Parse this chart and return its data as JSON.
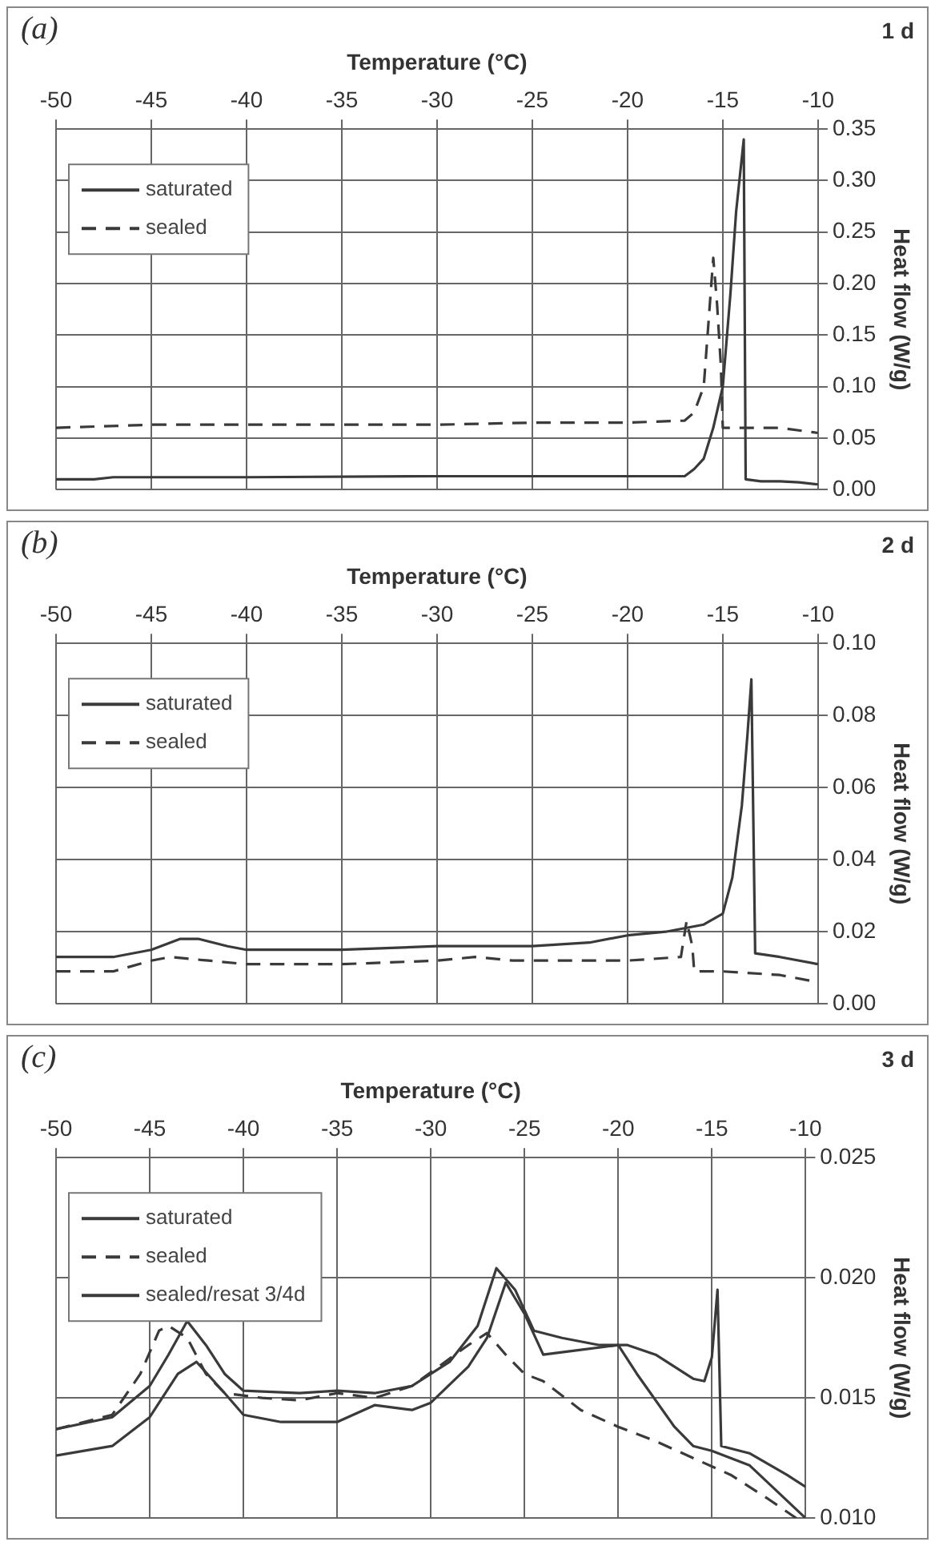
{
  "chart_data": [
    {
      "type": "line",
      "title": "(a)",
      "annotations": [
        "1 d"
      ],
      "xlabel": "Temperature (°C)",
      "ylabel": "Heat flow (W/g)",
      "xlim": [
        -50,
        -10
      ],
      "xticks": [
        -50,
        -45,
        -40,
        -35,
        -30,
        -25,
        -20,
        -15,
        -10
      ],
      "ylim": [
        0,
        0.35
      ],
      "yticks": [
        {
          "value": 0,
          "label": "0.00"
        },
        0.05,
        {
          "value": 0.1,
          "label": "0.10"
        },
        0.15,
        {
          "value": 0.2,
          "label": "0.20"
        },
        0.25,
        {
          "value": 0.3,
          "label": "0.30"
        },
        0.35
      ],
      "grid": true,
      "legend": "top left",
      "series": [
        {
          "name": "saturated",
          "color": "#3a3a3a",
          "line_style": "solid",
          "x": [
            -50,
            -48,
            -47,
            -40,
            -30,
            -20,
            -17,
            -16.5,
            -16,
            -15.5,
            -15,
            -14.6,
            -14.3,
            -13.9,
            -13.8,
            -13,
            -12,
            -11,
            -10
          ],
          "values": [
            0.01,
            0.01,
            0.012,
            0.012,
            0.013,
            0.013,
            0.013,
            0.02,
            0.03,
            0.06,
            0.1,
            0.19,
            0.27,
            0.34,
            0.01,
            0.008,
            0.008,
            0.007,
            0.005
          ]
        },
        {
          "name": "sealed",
          "color": "#3a3a3a",
          "line_style": "dashed",
          "x": [
            -50,
            -45,
            -40,
            -30,
            -25,
            -20,
            -17,
            -16.5,
            -16,
            -15.8,
            -15.6,
            -15.5,
            -15.3,
            -15.1,
            -15,
            -14,
            -12,
            -10
          ],
          "values": [
            0.06,
            0.063,
            0.063,
            0.063,
            0.065,
            0.065,
            0.067,
            0.075,
            0.1,
            0.15,
            0.2,
            0.225,
            0.18,
            0.12,
            0.06,
            0.06,
            0.06,
            0.055
          ]
        }
      ]
    },
    {
      "type": "line",
      "title": "(b)",
      "annotations": [
        "2 d"
      ],
      "xlabel": "Temperature (°C)",
      "ylabel": "Heat flow (W/g)",
      "xlim": [
        -50,
        -10
      ],
      "xticks": [
        -50,
        -45,
        -40,
        -35,
        -30,
        -25,
        -20,
        -15,
        -10
      ],
      "ylim": [
        0,
        0.1
      ],
      "yticks": [
        {
          "value": 0,
          "label": "0.00"
        },
        {
          "value": 0.02,
          "label": "0.02"
        },
        {
          "value": 0.04,
          "label": "0.04"
        },
        {
          "value": 0.06,
          "label": "0.06"
        },
        {
          "value": 0.08,
          "label": "0.08"
        },
        {
          "value": 0.1,
          "label": "0.10"
        }
      ],
      "grid": true,
      "legend": "top left",
      "series": [
        {
          "name": "saturated",
          "color": "#3a3a3a",
          "line_style": "solid",
          "x": [
            -50,
            -47,
            -45,
            -43.5,
            -42.5,
            -41,
            -40,
            -35,
            -30,
            -25,
            -22,
            -20,
            -18,
            -16,
            -15,
            -14.5,
            -14,
            -13.7,
            -13.5,
            -13.3,
            -12,
            -10
          ],
          "values": [
            0.013,
            0.013,
            0.015,
            0.018,
            0.018,
            0.016,
            0.015,
            0.015,
            0.016,
            0.016,
            0.017,
            0.019,
            0.02,
            0.022,
            0.025,
            0.035,
            0.055,
            0.075,
            0.09,
            0.014,
            0.013,
            0.011
          ]
        },
        {
          "name": "sealed",
          "color": "#3a3a3a",
          "line_style": "dashed",
          "x": [
            -50,
            -47,
            -45,
            -44,
            -42,
            -40,
            -35,
            -30,
            -28,
            -26,
            -20,
            -17.2,
            -16.9,
            -16.6,
            -16.5,
            -15,
            -12,
            -10
          ],
          "values": [
            0.009,
            0.009,
            0.012,
            0.013,
            0.012,
            0.011,
            0.011,
            0.012,
            0.013,
            0.012,
            0.012,
            0.013,
            0.023,
            0.016,
            0.009,
            0.009,
            0.008,
            0.006
          ]
        }
      ]
    },
    {
      "type": "line",
      "title": "(c)",
      "annotations": [
        "3 d"
      ],
      "xlabel": "Temperature (°C)",
      "ylabel": "Heat flow (W/g)",
      "xlim": [
        -50,
        -10
      ],
      "xticks": [
        -50,
        -45,
        -40,
        -35,
        -30,
        -25,
        -20,
        -15,
        -10
      ],
      "ylim": [
        0.01,
        0.025
      ],
      "yticks": [
        {
          "value": 0.01,
          "label": "0.010"
        },
        0.015,
        {
          "value": 0.02,
          "label": "0.020"
        },
        0.025
      ],
      "grid": true,
      "legend": "top left",
      "series": [
        {
          "name": "saturated",
          "color": "#3a3a3a",
          "line_style": "solid",
          "x": [
            -50,
            -47,
            -45,
            -44,
            -43,
            -42,
            -41,
            -40,
            -37,
            -35,
            -33,
            -31,
            -29,
            -27.5,
            -26.5,
            -25.5,
            -24.5,
            -23,
            -21,
            -19.5,
            -18,
            -16,
            -15.4,
            -15,
            -14.7,
            -14.5,
            -13,
            -11,
            -10
          ],
          "values": [
            0.0137,
            0.0142,
            0.0155,
            0.0168,
            0.0182,
            0.0172,
            0.016,
            0.0153,
            0.0152,
            0.0153,
            0.0152,
            0.0155,
            0.0165,
            0.018,
            0.0204,
            0.0195,
            0.0178,
            0.0175,
            0.0172,
            0.0172,
            0.0168,
            0.0158,
            0.0157,
            0.0167,
            0.0195,
            0.013,
            0.0127,
            0.0118,
            0.0113
          ]
        },
        {
          "name": "sealed",
          "color": "#3a3a3a",
          "line_style": "dashed",
          "x": [
            -50,
            -47,
            -45.5,
            -44.5,
            -44,
            -43,
            -42,
            -41,
            -39,
            -37,
            -35,
            -33,
            -31,
            -28,
            -27,
            -26,
            -25,
            -24,
            -22,
            -20,
            -18,
            -16,
            -14,
            -12,
            -10.5
          ],
          "values": [
            0.0137,
            0.0143,
            0.016,
            0.0178,
            0.018,
            0.0175,
            0.016,
            0.0152,
            0.015,
            0.0149,
            0.0152,
            0.015,
            0.0155,
            0.0172,
            0.0177,
            0.0168,
            0.016,
            0.0157,
            0.0145,
            0.0138,
            0.0132,
            0.0125,
            0.0118,
            0.0108,
            0.01
          ]
        },
        {
          "name": "sealed/resat 3/4d",
          "color": "#3a3a3a",
          "line_style": "solid",
          "x": [
            -50,
            -47,
            -45,
            -43.5,
            -42.5,
            -41,
            -40,
            -38,
            -35,
            -33,
            -31,
            -30,
            -28,
            -27,
            -26,
            -25,
            -24,
            -22,
            -20,
            -19,
            -17,
            -16,
            -15,
            -13,
            -10
          ],
          "values": [
            0.0126,
            0.013,
            0.0142,
            0.016,
            0.0165,
            0.0152,
            0.0143,
            0.014,
            0.014,
            0.0147,
            0.0145,
            0.0148,
            0.0163,
            0.0175,
            0.0198,
            0.0185,
            0.0168,
            0.017,
            0.0172,
            0.016,
            0.0138,
            0.013,
            0.0128,
            0.0122,
            0.01
          ]
        }
      ]
    }
  ]
}
